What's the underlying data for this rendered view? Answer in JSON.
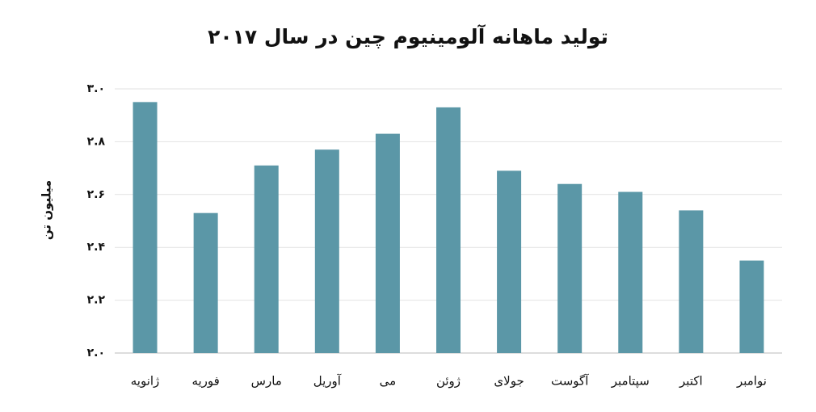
{
  "chart_data": {
    "type": "bar",
    "title": "تولید ماهانه آلومینیوم چین در سال ۲۰۱۷",
    "y_label": "میلیون تن",
    "categories": [
      "ژانویه",
      "فوریه",
      "مارس",
      "آوریل",
      "می",
      "ژوئن",
      "جولای",
      "آگوست",
      "سپتامبر",
      "اکتبر",
      "نوامبر"
    ],
    "values": [
      2.95,
      2.53,
      2.71,
      2.77,
      2.83,
      2.93,
      2.69,
      2.64,
      2.61,
      2.54,
      2.35
    ],
    "color": "#5b97a7",
    "ylim": [
      2.0,
      3.0
    ],
    "yticks": [
      {
        "value": 2.0,
        "label": "۲.۰"
      },
      {
        "value": 2.2,
        "label": "۲.۲"
      },
      {
        "value": 2.4,
        "label": "۲.۴"
      },
      {
        "value": 2.6,
        "label": "۲.۶"
      },
      {
        "value": 2.8,
        "label": "۲.۸"
      },
      {
        "value": 3.0,
        "label": "۳.۰"
      }
    ],
    "grid": true
  }
}
